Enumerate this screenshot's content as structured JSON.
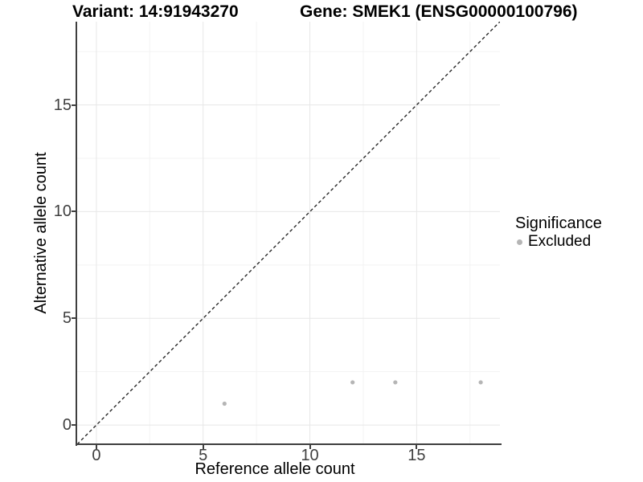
{
  "chart_data": {
    "type": "scatter",
    "title_left": "Variant: 14:91943270",
    "title_right": "Gene: SMEK1 (ENSG00000100796)",
    "xlabel": "Reference allele count",
    "ylabel": "Alternative allele count",
    "xlim": [
      -0.9,
      18.9
    ],
    "ylim": [
      -0.9,
      18.9
    ],
    "xticks": [
      0,
      5,
      10,
      15
    ],
    "yticks": [
      0,
      5,
      10,
      15
    ],
    "xticks_minor": [
      2.5,
      7.5,
      12.5,
      17.5
    ],
    "yticks_minor": [
      2.5,
      7.5,
      12.5,
      17.5
    ],
    "grid": "major and minor, light gray on white",
    "reference_line": {
      "type": "identity y=x",
      "style": "dashed",
      "color": "#1a1a1a",
      "from": [
        -0.9,
        -0.9
      ],
      "to": [
        18.9,
        18.9
      ]
    },
    "series": [
      {
        "name": "Excluded",
        "color": "#b5b5b5",
        "points": [
          [
            6,
            1
          ],
          [
            12,
            2
          ],
          [
            14,
            2
          ],
          [
            18,
            2
          ]
        ]
      }
    ],
    "legend": {
      "title": "Significance",
      "position": "right-center",
      "items": [
        {
          "label": "Excluded",
          "color": "#b5b5b5"
        }
      ]
    },
    "style": {
      "background": "#ffffff",
      "axis_line_color": "#3f3f3f",
      "tick_label_color": "#404040",
      "grid_major_color": "#e7e7e7",
      "grid_minor_color": "#f3f3f3"
    }
  }
}
